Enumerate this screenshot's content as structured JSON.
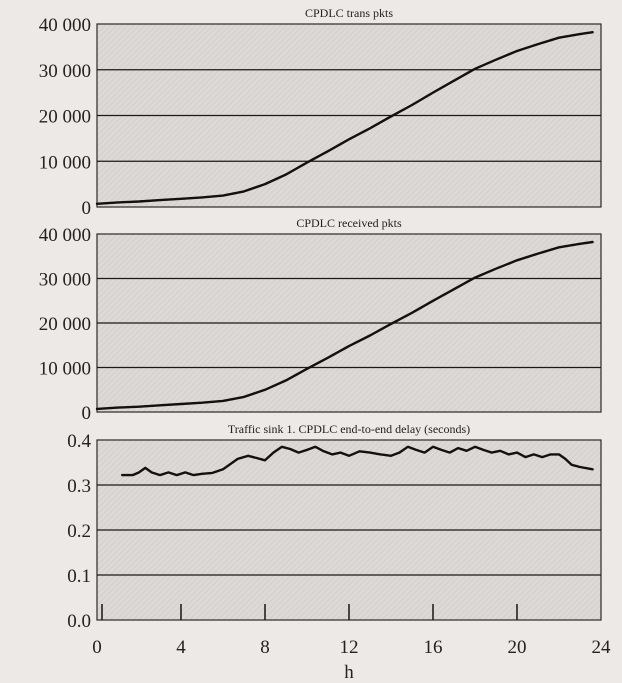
{
  "chart_data": [
    {
      "type": "line",
      "title": "CPDLC trans pkts",
      "xlim": [
        0,
        24
      ],
      "ylim": [
        0,
        40000
      ],
      "yticks": [
        0,
        10000,
        20000,
        30000,
        40000
      ],
      "ytick_labels": [
        "0",
        "10 000",
        "20 000",
        "30 000",
        "40 000"
      ],
      "grid": true,
      "series": [
        {
          "x": [
            0,
            1,
            2,
            3,
            4,
            5,
            6,
            7,
            8,
            9,
            10,
            11,
            12,
            13,
            14,
            15,
            16,
            17,
            18,
            19,
            20,
            21,
            22,
            23,
            23.6
          ],
          "y": [
            700,
            1000,
            1200,
            1500,
            1800,
            2100,
            2500,
            3400,
            5000,
            7100,
            9700,
            12200,
            14800,
            17200,
            19800,
            22300,
            25000,
            27600,
            30200,
            32200,
            34100,
            35600,
            37000,
            37800,
            38200
          ]
        }
      ]
    },
    {
      "type": "line",
      "title": "CPDLC received pkts",
      "xlim": [
        0,
        24
      ],
      "ylim": [
        0,
        40000
      ],
      "yticks": [
        0,
        10000,
        20000,
        30000,
        40000
      ],
      "ytick_labels": [
        "0",
        "10 000",
        "20 000",
        "30 000",
        "40 000"
      ],
      "grid": true,
      "series": [
        {
          "x": [
            0,
            1,
            2,
            3,
            4,
            5,
            6,
            7,
            8,
            9,
            10,
            11,
            12,
            13,
            14,
            15,
            16,
            17,
            18,
            19,
            20,
            21,
            22,
            23,
            23.6
          ],
          "y": [
            700,
            1000,
            1200,
            1500,
            1800,
            2100,
            2500,
            3400,
            5000,
            7100,
            9700,
            12200,
            14800,
            17200,
            19800,
            22300,
            25000,
            27600,
            30200,
            32200,
            34100,
            35600,
            37000,
            37800,
            38200
          ]
        }
      ]
    },
    {
      "type": "line",
      "title": "Traffic sink 1. CPDLC end-to-end delay (seconds)",
      "xlabel": "h",
      "xlim": [
        0,
        24
      ],
      "ylim": [
        0,
        0.4
      ],
      "yticks": [
        0,
        0.1,
        0.2,
        0.3,
        0.4
      ],
      "ytick_labels": [
        "0.0",
        "0.1",
        "0.2",
        "0.3",
        "0.4"
      ],
      "xticks": [
        0,
        4,
        8,
        12,
        16,
        20,
        24
      ],
      "xtick_labels": [
        "0",
        "4",
        "8",
        "12",
        "16",
        "20",
        "24"
      ],
      "grid": true,
      "series": [
        {
          "x": [
            1.2,
            1.7,
            2.0,
            2.3,
            2.6,
            3.0,
            3.4,
            3.8,
            4.2,
            4.6,
            5.0,
            5.5,
            6.0,
            6.3,
            6.7,
            7.2,
            7.6,
            8.0,
            8.4,
            8.8,
            9.2,
            9.6,
            10.0,
            10.4,
            10.8,
            11.2,
            11.6,
            12.0,
            12.5,
            13.0,
            13.5,
            14.0,
            14.4,
            14.8,
            15.2,
            15.6,
            16.0,
            16.4,
            16.8,
            17.2,
            17.6,
            18.0,
            18.4,
            18.8,
            19.2,
            19.6,
            20.0,
            20.4,
            20.8,
            21.2,
            21.6,
            22.0,
            22.3,
            22.6,
            23.0,
            23.6
          ],
          "y": [
            0.322,
            0.322,
            0.328,
            0.338,
            0.328,
            0.322,
            0.328,
            0.322,
            0.328,
            0.322,
            0.325,
            0.327,
            0.335,
            0.345,
            0.358,
            0.365,
            0.36,
            0.355,
            0.372,
            0.385,
            0.38,
            0.372,
            0.378,
            0.385,
            0.375,
            0.368,
            0.372,
            0.365,
            0.375,
            0.372,
            0.368,
            0.365,
            0.372,
            0.385,
            0.378,
            0.372,
            0.385,
            0.378,
            0.372,
            0.382,
            0.376,
            0.385,
            0.378,
            0.372,
            0.376,
            0.368,
            0.372,
            0.362,
            0.368,
            0.362,
            0.368,
            0.368,
            0.358,
            0.345,
            0.34,
            0.335
          ]
        }
      ]
    }
  ]
}
